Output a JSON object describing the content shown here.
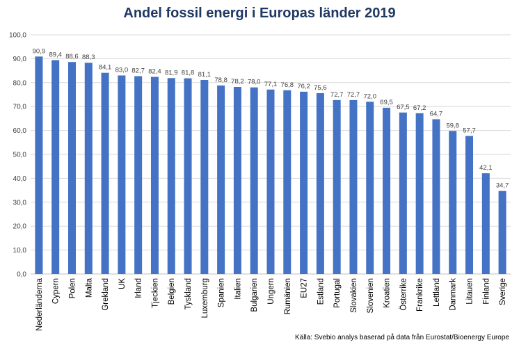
{
  "chart_data": {
    "type": "bar",
    "title": "Andel fossil energi i Europas länder 2019",
    "xlabel": "",
    "ylabel": "",
    "ylim": [
      0,
      100
    ],
    "yticks": [
      "0,0",
      "10,0",
      "20,0",
      "30,0",
      "40,0",
      "50,0",
      "60,0",
      "70,0",
      "80,0",
      "90,0",
      "100,0"
    ],
    "grid": true,
    "bar_color": "#4472c4",
    "categories": [
      "Nederländerna",
      "Cypern",
      "Polen",
      "Malta",
      "Grekland",
      "UK",
      "Irland",
      "Tjeckien",
      "Belgien",
      "Tyskland",
      "Luxemburg",
      "Spanien",
      "Italien",
      "Bulgarien",
      "Ungern",
      "Rumänien",
      "EU27",
      "Estland",
      "Portugal",
      "Slovakien",
      "Slovenien",
      "Kroatien",
      "Österrike",
      "Frankrike",
      "Lettland",
      "Danmark",
      "Litauen",
      "Finland",
      "Sverige"
    ],
    "values": [
      90.9,
      89.4,
      88.6,
      88.3,
      84.1,
      83.0,
      82.7,
      82.4,
      81.9,
      81.8,
      81.1,
      78.8,
      78.2,
      78.0,
      77.1,
      76.8,
      76.2,
      75.6,
      72.7,
      72.7,
      72.0,
      69.5,
      67.5,
      67.2,
      64.7,
      59.8,
      57.7,
      42.1,
      34.7
    ],
    "labels": [
      "90,9",
      "89,4",
      "88,6",
      "88,3",
      "84,1",
      "83,0",
      "82,7",
      "82,4",
      "81,9",
      "81,8",
      "81,1",
      "78,8",
      "78,2",
      "78,0",
      "77,1",
      "76,8",
      "76,2",
      "75,6",
      "72,7",
      "72,7",
      "72,0",
      "69,5",
      "67,5",
      "67,2",
      "64,7",
      "59,8",
      "57,7",
      "42,1",
      "34,7"
    ]
  },
  "source": "Källa: Svebio analys baserad på data från Eurostat/Bioenergy Europe"
}
